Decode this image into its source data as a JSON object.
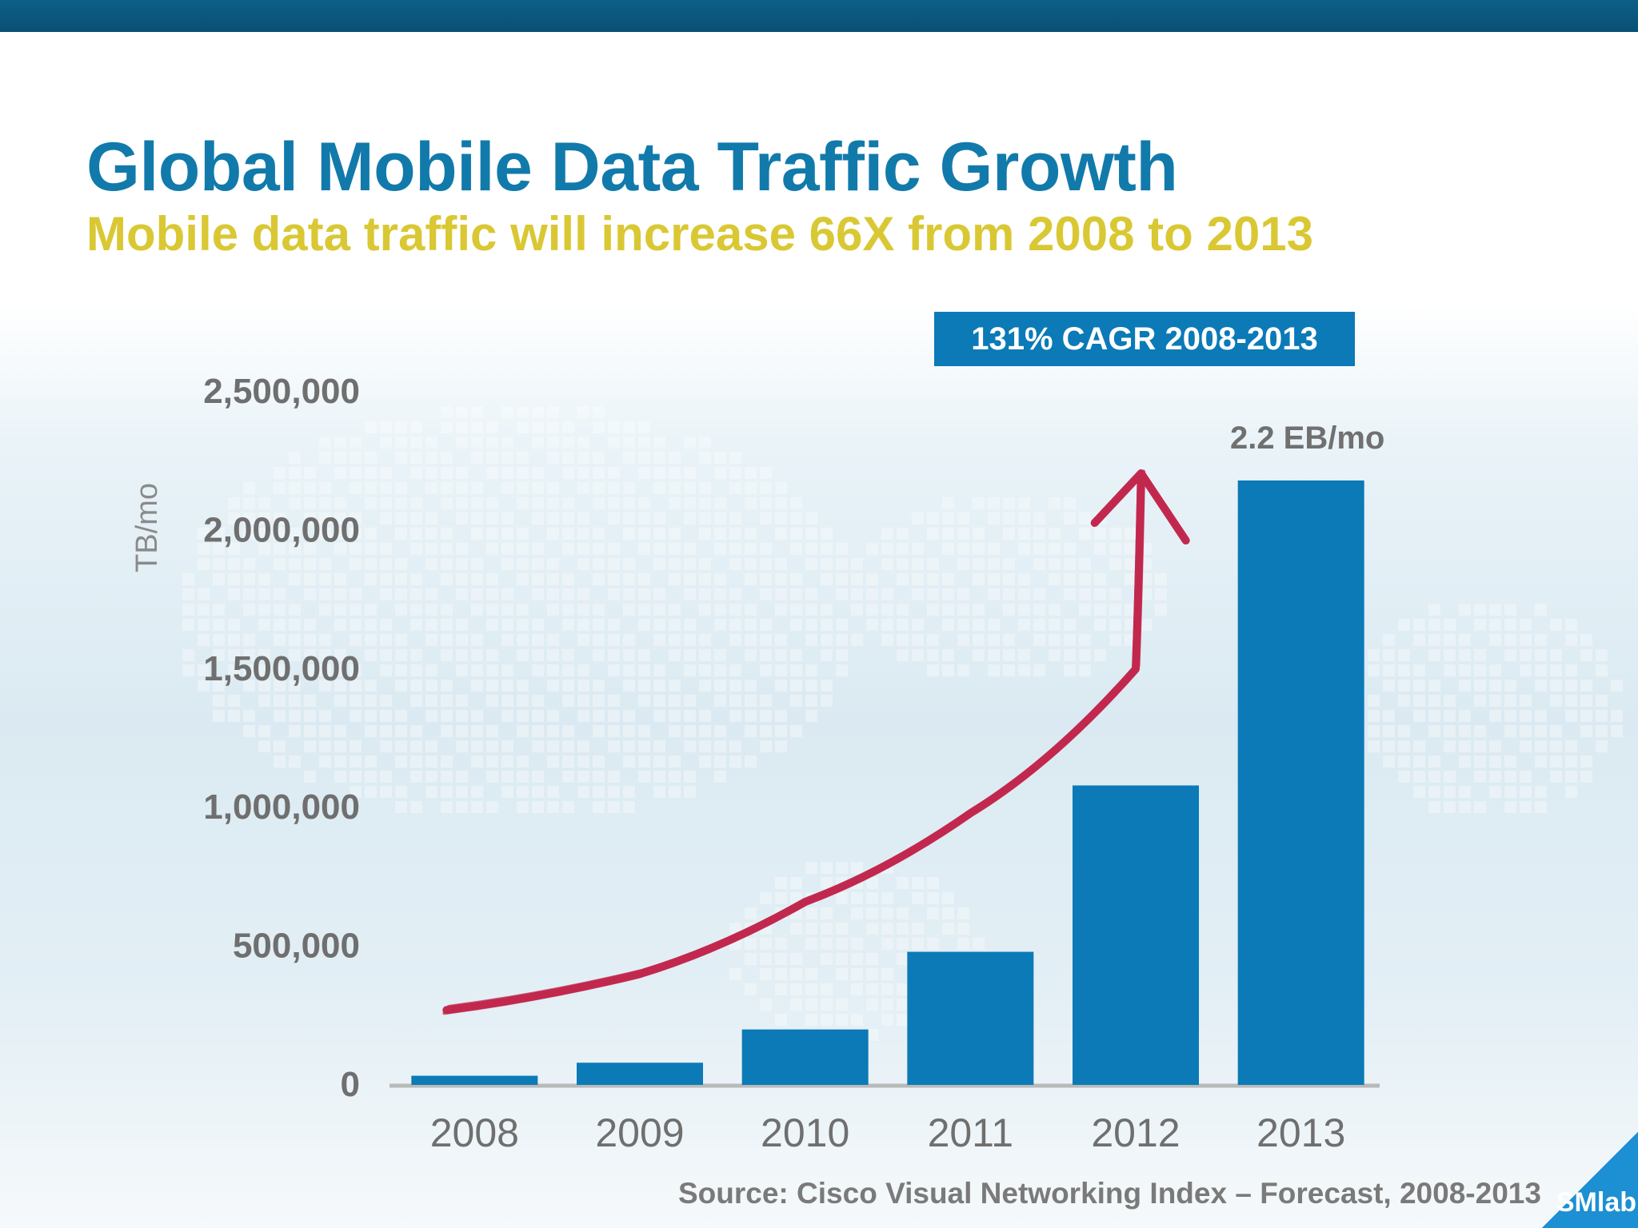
{
  "slide": {
    "title": "Global Mobile Data Traffic Growth",
    "subtitle": "Mobile data traffic will increase 66X from 2008 to 2013",
    "cagr_label": "131% CAGR 2008-2013",
    "source": "Source: Cisco Visual Networking Index – Forecast, 2008-2013",
    "corner_label": "SMlab"
  },
  "colors": {
    "title": "#117aab",
    "subtitle": "#d9c833",
    "bar": "#0b7ab7",
    "arrow": "#c2284e",
    "axis_text": "#6f6f6f"
  },
  "chart_data": {
    "type": "bar",
    "title": "",
    "xlabel": "",
    "ylabel": "TB/mo",
    "categories": [
      "2008",
      "2009",
      "2010",
      "2011",
      "2012",
      "2013"
    ],
    "values": [
      33000,
      80000,
      200000,
      480000,
      1080000,
      2180000
    ],
    "ylim": [
      0,
      2500000
    ],
    "yticks": [
      0,
      500000,
      1000000,
      1500000,
      2000000,
      2500000
    ],
    "ytick_labels": [
      "0",
      "500,000",
      "1,000,000",
      "1,500,000",
      "2,000,000",
      "2,500,000"
    ],
    "grid": false,
    "legend": "none",
    "annotations": [
      {
        "text": "2.2 EB/mo",
        "category": "2013"
      }
    ],
    "trend_arrow": {
      "description": "hand-drawn red growth arrow",
      "points": [
        {
          "x": "2008",
          "y": 270000
        },
        {
          "x": "2009",
          "y": 400000
        },
        {
          "x": "2010",
          "y": 660000
        },
        {
          "x": "2011",
          "y": 980000
        },
        {
          "x": "2012",
          "y": 1500000
        },
        {
          "x": "2013",
          "y": 2200000
        }
      ]
    }
  }
}
